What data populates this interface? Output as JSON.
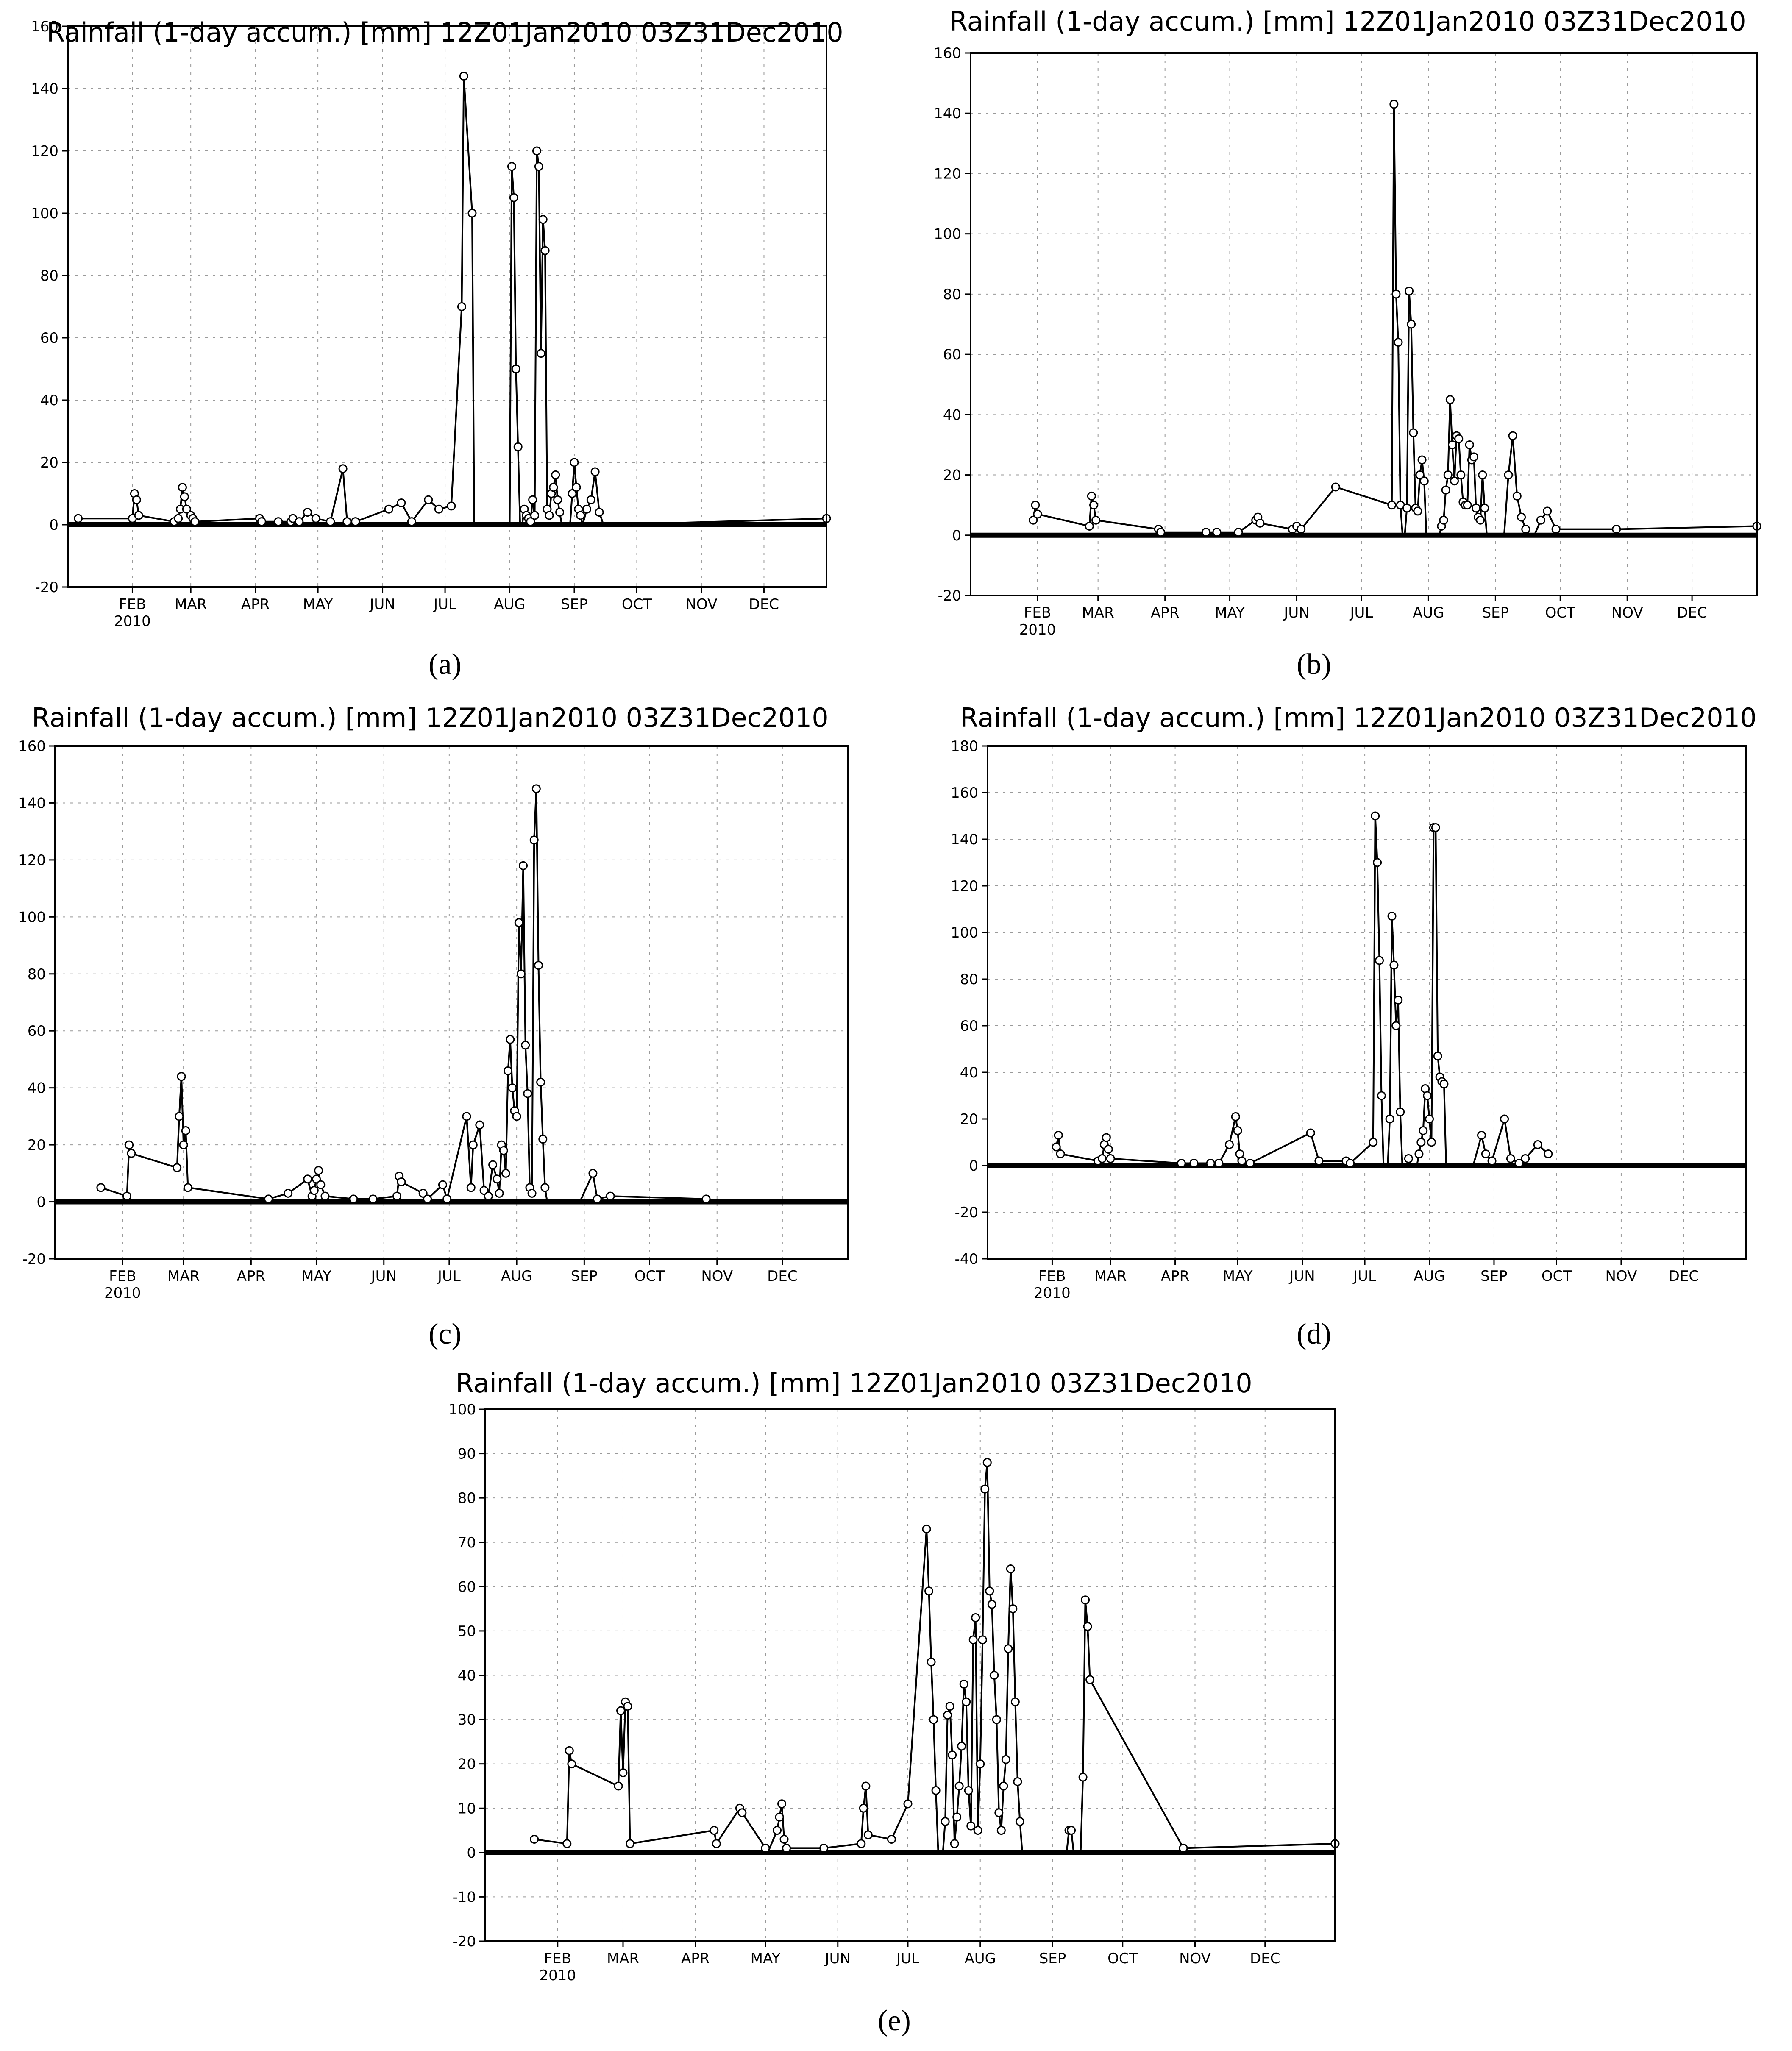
{
  "figure": {
    "panel_labels": [
      "(a)",
      "(b)",
      "(c)",
      "(d)",
      "(e)"
    ],
    "month_labels": [
      "FEB",
      "MAR",
      "APR",
      "MAY",
      "JUN",
      "JUL",
      "AUG",
      "SEP",
      "OCT",
      "NOV",
      "DEC"
    ],
    "year_label": "2010"
  },
  "chart_data": [
    {
      "panel": "(a)",
      "type": "line",
      "title": "Rainfall (1-day accum.) [mm] 12Z01Jan2010 03Z31Dec2010",
      "x_unit": "day-of-year 2010",
      "xlim": [
        1,
        365
      ],
      "ylim": [
        -20,
        160
      ],
      "yticks": [
        -20,
        0,
        20,
        40,
        60,
        80,
        100,
        120,
        140,
        160
      ],
      "grid": true,
      "series": [
        {
          "x": [
            6,
            32,
            33,
            34,
            35,
            52,
            54,
            55,
            56,
            57,
            58,
            60,
            61,
            62,
            93,
            94,
            102,
            108,
            109,
            112,
            116,
            120,
            127,
            133,
            135,
            139,
            155,
            161,
            166,
            174,
            179,
            185,
            190,
            191,
            195,
            196,
            197,
            198,
            199,
            200,
            201,
            202,
            203,
            204,
            205,
            206,
            207,
            208,
            209,
            210,
            211,
            212,
            213,
            214,
            215,
            216,
            217,
            218,
            219,
            220,
            221,
            222,
            223,
            224,
            225,
            226,
            227,
            228,
            229,
            230,
            231,
            232,
            233,
            234,
            235,
            236,
            237,
            238,
            239,
            240,
            241,
            242,
            243,
            244,
            245,
            246,
            247,
            248,
            250,
            252,
            254,
            256,
            258,
            260,
            262,
            365
          ],
          "y": [
            2,
            2,
            10,
            8,
            3,
            1,
            2,
            5,
            12,
            9,
            5,
            3,
            2,
            1,
            2,
            1,
            1,
            1,
            2,
            1,
            4,
            2,
            1,
            18,
            1,
            1,
            5,
            7,
            1,
            8,
            5,
            6,
            70,
            144,
            100,
            0,
            0,
            0,
            0,
            0,
            0,
            0,
            0,
            0,
            0,
            0,
            0,
            0,
            0,
            0,
            0,
            0,
            0,
            115,
            105,
            50,
            25,
            0,
            0,
            5,
            3,
            2,
            1,
            8,
            3,
            120,
            115,
            55,
            98,
            88,
            5,
            3,
            10,
            12,
            16,
            8,
            4,
            0,
            0,
            0,
            0,
            0,
            10,
            20,
            12,
            5,
            3,
            0,
            5,
            8,
            17,
            4,
            0,
            0,
            0,
            2
          ]
        }
      ]
    },
    {
      "panel": "(b)",
      "type": "line",
      "title": "Rainfall (1-day accum.) [mm] 12Z01Jan2010 03Z31Dec2010",
      "x_unit": "day-of-year 2010",
      "xlim": [
        1,
        365
      ],
      "ylim": [
        -20,
        160
      ],
      "yticks": [
        -20,
        0,
        20,
        40,
        60,
        80,
        100,
        120,
        140,
        160
      ],
      "grid": true,
      "series": [
        {
          "x": [
            30,
            31,
            32,
            56,
            57,
            58,
            59,
            88,
            89,
            110,
            115,
            125,
            133,
            134,
            135,
            150,
            152,
            154,
            170,
            196,
            197,
            198,
            199,
            200,
            201,
            202,
            203,
            204,
            205,
            206,
            207,
            208,
            209,
            210,
            211,
            212,
            213,
            214,
            215,
            216,
            217,
            218,
            219,
            220,
            221,
            222,
            223,
            224,
            225,
            226,
            227,
            228,
            229,
            230,
            231,
            232,
            233,
            234,
            235,
            236,
            237,
            238,
            239,
            240,
            241,
            242,
            243,
            244,
            245,
            246,
            247,
            248,
            250,
            252,
            254,
            256,
            258,
            260,
            262,
            265,
            268,
            272,
            300,
            365
          ],
          "y": [
            5,
            10,
            7,
            3,
            13,
            10,
            5,
            2,
            1,
            1,
            1,
            1,
            5,
            6,
            4,
            2,
            3,
            2,
            16,
            10,
            143,
            80,
            64,
            10,
            0,
            0,
            9,
            81,
            70,
            34,
            9,
            8,
            20,
            25,
            18,
            0,
            0,
            0,
            0,
            0,
            0,
            0,
            3,
            5,
            15,
            20,
            45,
            30,
            18,
            33,
            32,
            20,
            11,
            10,
            10,
            30,
            25,
            26,
            9,
            6,
            5,
            20,
            9,
            0,
            0,
            0,
            0,
            0,
            0,
            0,
            0,
            0,
            20,
            33,
            13,
            6,
            2,
            0,
            0,
            5,
            8,
            2,
            2,
            3
          ]
        }
      ]
    },
    {
      "panel": "(c)",
      "type": "line",
      "title": "Rainfall (1-day accum.) [mm] 12Z01Jan2010 03Z31Dec2010",
      "x_unit": "day-of-year 2010",
      "xlim": [
        1,
        365
      ],
      "ylim": [
        -20,
        160
      ],
      "yticks": [
        -20,
        0,
        20,
        40,
        60,
        80,
        100,
        120,
        140,
        160
      ],
      "grid": true,
      "series": [
        {
          "x": [
            22,
            34,
            35,
            36,
            57,
            58,
            59,
            60,
            61,
            62,
            99,
            108,
            117,
            119,
            120,
            121,
            122,
            123,
            125,
            138,
            147,
            158,
            159,
            160,
            170,
            172,
            179,
            181,
            190,
            192,
            193,
            196,
            198,
            200,
            202,
            204,
            205,
            206,
            207,
            208,
            209,
            210,
            211,
            212,
            213,
            214,
            215,
            216,
            217,
            218,
            219,
            220,
            221,
            222,
            223,
            224,
            225,
            226,
            227,
            228,
            229,
            230,
            231,
            232,
            233,
            234,
            235,
            236,
            237,
            238,
            239,
            240,
            241,
            242,
            248,
            250,
            256,
            300
          ],
          "y": [
            5,
            2,
            20,
            17,
            12,
            30,
            44,
            20,
            25,
            5,
            1,
            3,
            8,
            2,
            4,
            8,
            11,
            6,
            2,
            1,
            1,
            2,
            9,
            7,
            3,
            1,
            6,
            1,
            30,
            5,
            20,
            27,
            4,
            2,
            13,
            8,
            3,
            20,
            18,
            10,
            46,
            57,
            40,
            32,
            30,
            98,
            80,
            118,
            55,
            38,
            5,
            3,
            127,
            145,
            83,
            42,
            22,
            5,
            0,
            0,
            0,
            0,
            0,
            0,
            0,
            0,
            0,
            0,
            0,
            0,
            0,
            0,
            0,
            0,
            10,
            1,
            2,
            1
          ]
        }
      ]
    },
    {
      "panel": "(d)",
      "type": "line",
      "title": "Rainfall (1-day accum.) [mm] 12Z01Jan2010 03Z31Dec2010",
      "x_unit": "day-of-year 2010",
      "xlim": [
        1,
        365
      ],
      "ylim": [
        -40,
        180
      ],
      "yticks": [
        -40,
        -20,
        0,
        20,
        40,
        60,
        80,
        100,
        120,
        140,
        160,
        180
      ],
      "grid": true,
      "series": [
        {
          "x": [
            34,
            35,
            36,
            54,
            56,
            57,
            58,
            59,
            60,
            94,
            100,
            108,
            112,
            117,
            120,
            121,
            122,
            123,
            127,
            156,
            160,
            173,
            175,
            186,
            187,
            188,
            189,
            190,
            191,
            192,
            193,
            194,
            195,
            196,
            197,
            198,
            199,
            200,
            201,
            202,
            203,
            204,
            205,
            206,
            207,
            208,
            209,
            210,
            211,
            212,
            213,
            214,
            215,
            216,
            217,
            218,
            219,
            220,
            221,
            222,
            223,
            224,
            225,
            226,
            227,
            228,
            229,
            230,
            231,
            232,
            233,
            234,
            238,
            240,
            243,
            249,
            252,
            256,
            259,
            265,
            270
          ],
          "y": [
            8,
            13,
            5,
            2,
            3,
            9,
            12,
            7,
            3,
            1,
            1,
            1,
            1,
            9,
            21,
            15,
            5,
            2,
            1,
            14,
            2,
            2,
            1,
            10,
            150,
            130,
            88,
            30,
            0,
            0,
            0,
            20,
            107,
            86,
            60,
            71,
            23,
            0,
            0,
            0,
            3,
            0,
            0,
            0,
            0,
            5,
            10,
            15,
            33,
            30,
            20,
            10,
            145,
            145,
            47,
            38,
            36,
            35,
            0,
            0,
            0,
            0,
            0,
            0,
            0,
            0,
            0,
            0,
            0,
            0,
            0,
            0,
            13,
            5,
            2,
            20,
            3,
            1,
            3,
            9,
            5
          ]
        }
      ]
    },
    {
      "panel": "(e)",
      "type": "line",
      "title": "Rainfall (1-day accum.) [mm] 12Z01Jan2010 03Z31Dec2010",
      "x_unit": "day-of-year 2010",
      "xlim": [
        1,
        365
      ],
      "ylim": [
        -20,
        100
      ],
      "yticks": [
        -20,
        -10,
        0,
        10,
        20,
        30,
        40,
        50,
        60,
        70,
        80,
        90,
        100
      ],
      "grid": true,
      "series": [
        {
          "x": [
            22,
            36,
            37,
            38,
            58,
            59,
            60,
            61,
            62,
            63,
            99,
            100,
            110,
            111,
            121,
            122,
            126,
            127,
            128,
            129,
            130,
            146,
            162,
            163,
            164,
            165,
            175,
            182,
            190,
            191,
            192,
            193,
            194,
            195,
            196,
            197,
            198,
            199,
            200,
            201,
            202,
            203,
            204,
            205,
            206,
            207,
            208,
            209,
            210,
            211,
            212,
            213,
            214,
            215,
            216,
            217,
            218,
            219,
            220,
            221,
            222,
            223,
            224,
            225,
            226,
            227,
            228,
            229,
            230,
            231,
            232,
            233,
            234,
            235,
            236,
            237,
            238,
            239,
            240,
            241,
            242,
            243,
            244,
            245,
            246,
            247,
            248,
            249,
            250,
            251,
            252,
            253,
            254,
            255,
            256,
            257,
            258,
            259,
            260,
            300,
            365
          ],
          "y": [
            3,
            2,
            23,
            20,
            15,
            32,
            18,
            34,
            33,
            2,
            5,
            2,
            10,
            9,
            1,
            0,
            5,
            8,
            11,
            3,
            1,
            1,
            2,
            10,
            15,
            4,
            3,
            11,
            73,
            59,
            43,
            30,
            14,
            0,
            0,
            0,
            7,
            31,
            33,
            22,
            2,
            8,
            15,
            24,
            38,
            34,
            14,
            6,
            48,
            53,
            5,
            20,
            48,
            82,
            88,
            59,
            56,
            40,
            30,
            9,
            5,
            15,
            21,
            46,
            64,
            55,
            34,
            16,
            7,
            0,
            0,
            0,
            0,
            0,
            0,
            0,
            0,
            0,
            0,
            0,
            0,
            0,
            0,
            0,
            0,
            0,
            0,
            0,
            0,
            5,
            5,
            0,
            0,
            0,
            0,
            17,
            57,
            51,
            39,
            1,
            2
          ]
        }
      ]
    }
  ]
}
